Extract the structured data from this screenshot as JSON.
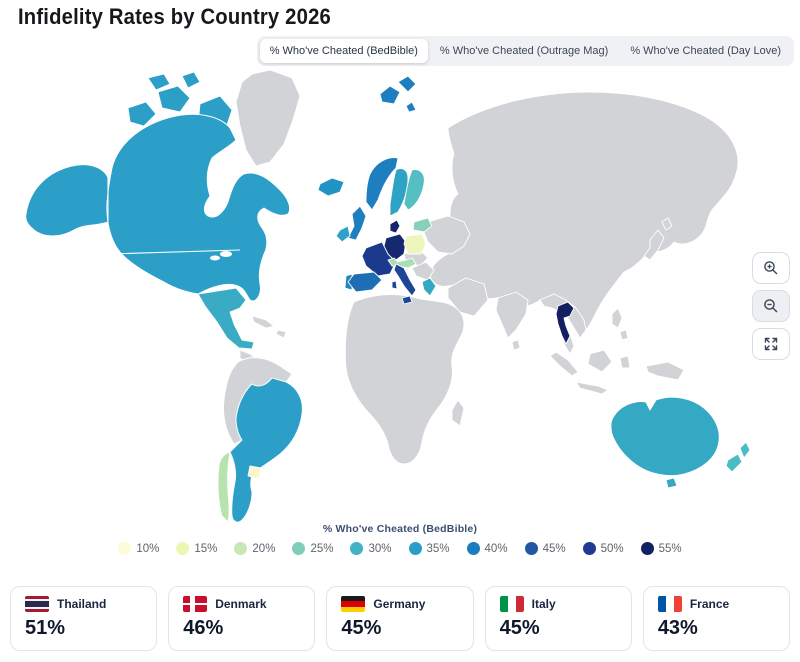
{
  "page": {
    "title": "Infidelity Rates by Country 2026"
  },
  "tabs": [
    {
      "label": "% Who've Cheated (BedBible)",
      "active": true
    },
    {
      "label": "% Who've Cheated (Outrage Mag)",
      "active": false
    },
    {
      "label": "% Who've Cheated (Day Love)",
      "active": false
    }
  ],
  "controls": {
    "zoom_in_icon": "magnifier-plus",
    "zoom_out_icon": "magnifier-minus",
    "fullscreen_icon": "expand-arrows"
  },
  "map": {
    "no_data_color": "#d2d3d7",
    "fills": {
      "canada_usa": "#2b9fc7",
      "mexico": "#3aabc4",
      "brazil_argentina": "#2b9fc7",
      "chile": "#b9e3ae",
      "uruguay": "#fcf6cd",
      "iceland": "#2193c5",
      "uk": "#1d7fc0",
      "ireland": "#2fa3c5",
      "norway": "#1d7fc0",
      "svalbard": "#1d7fc0",
      "sweden": "#2fa3c5",
      "finland": "#55bec0",
      "denmark": "#15246b",
      "germany": "#16296f",
      "france": "#1b3a8e",
      "spain": "#1e6eb5",
      "portugal": "#2283bf",
      "italy": "#1d4696",
      "poland": "#eef6bd",
      "baltics": "#8ad0b6",
      "alps": "#aadfb4",
      "greece": "#35a8c4",
      "thailand": "#131f60",
      "australia": "#35a8c3",
      "new_zealand": "#49bcc4"
    }
  },
  "legend": {
    "title": "% Who've Cheated (BedBible)",
    "items": [
      {
        "label": "10%",
        "color": "#fdfcda"
      },
      {
        "label": "15%",
        "color": "#edf7b3"
      },
      {
        "label": "20%",
        "color": "#c5e8b4"
      },
      {
        "label": "25%",
        "color": "#7fceba"
      },
      {
        "label": "30%",
        "color": "#41b3c2"
      },
      {
        "label": "35%",
        "color": "#2a9dc8"
      },
      {
        "label": "40%",
        "color": "#1d7cbd"
      },
      {
        "label": "45%",
        "color": "#2257a6"
      },
      {
        "label": "50%",
        "color": "#223a94"
      },
      {
        "label": "55%",
        "color": "#0f2161"
      }
    ]
  },
  "cards": [
    {
      "country": "Thailand",
      "value": "51%",
      "flag": {
        "type": "h",
        "colors": [
          "#a51931",
          "#f4f5f8",
          "#2d2a4a",
          "#f4f5f8",
          "#a51931"
        ],
        "weights": [
          1,
          1,
          2,
          1,
          1
        ]
      }
    },
    {
      "country": "Denmark",
      "value": "46%",
      "flag": {
        "type": "nordic",
        "colors": [
          "#c8102e",
          "#ffffff"
        ]
      }
    },
    {
      "country": "Germany",
      "value": "45%",
      "flag": {
        "type": "h",
        "colors": [
          "#1a1a1a",
          "#dd0000",
          "#ffce00"
        ],
        "weights": [
          1,
          1,
          1
        ]
      }
    },
    {
      "country": "Italy",
      "value": "45%",
      "flag": {
        "type": "v",
        "colors": [
          "#009246",
          "#ffffff",
          "#ce2b37"
        ],
        "weights": [
          1,
          1,
          1
        ]
      }
    },
    {
      "country": "France",
      "value": "43%",
      "flag": {
        "type": "v",
        "colors": [
          "#0055a4",
          "#ffffff",
          "#ef4135"
        ],
        "weights": [
          1,
          1,
          1
        ]
      }
    }
  ],
  "chart_data": {
    "type": "choropleth",
    "title": "Infidelity Rates by Country 2026",
    "metric": "% Who've Cheated (BedBible)",
    "legend_bins_percent": [
      10,
      15,
      20,
      25,
      30,
      35,
      40,
      45,
      50,
      55
    ],
    "legend_position": "bottom-center",
    "labeled_values": [
      {
        "country": "Thailand",
        "value": 51
      },
      {
        "country": "Denmark",
        "value": 46
      },
      {
        "country": "Germany",
        "value": 45
      },
      {
        "country": "Italy",
        "value": 45
      },
      {
        "country": "France",
        "value": 43
      }
    ],
    "estimated_from_map_color": {
      "Canada": 35,
      "United States": 35,
      "Mexico": 35,
      "Brazil": 35,
      "Argentina": 35,
      "Chile": 20,
      "Uruguay": 10,
      "Iceland": 35,
      "United Kingdom": 40,
      "Ireland": 35,
      "Norway": 40,
      "Svalbard (Norway)": 40,
      "Sweden": 35,
      "Finland": 30,
      "Spain": 40,
      "Portugal": 35,
      "Poland": 15,
      "Baltics": 25,
      "Austria/Switzerland": 20,
      "Greece": 35,
      "Australia": 35,
      "New Zealand": 30
    },
    "no_data_style": "gray"
  }
}
